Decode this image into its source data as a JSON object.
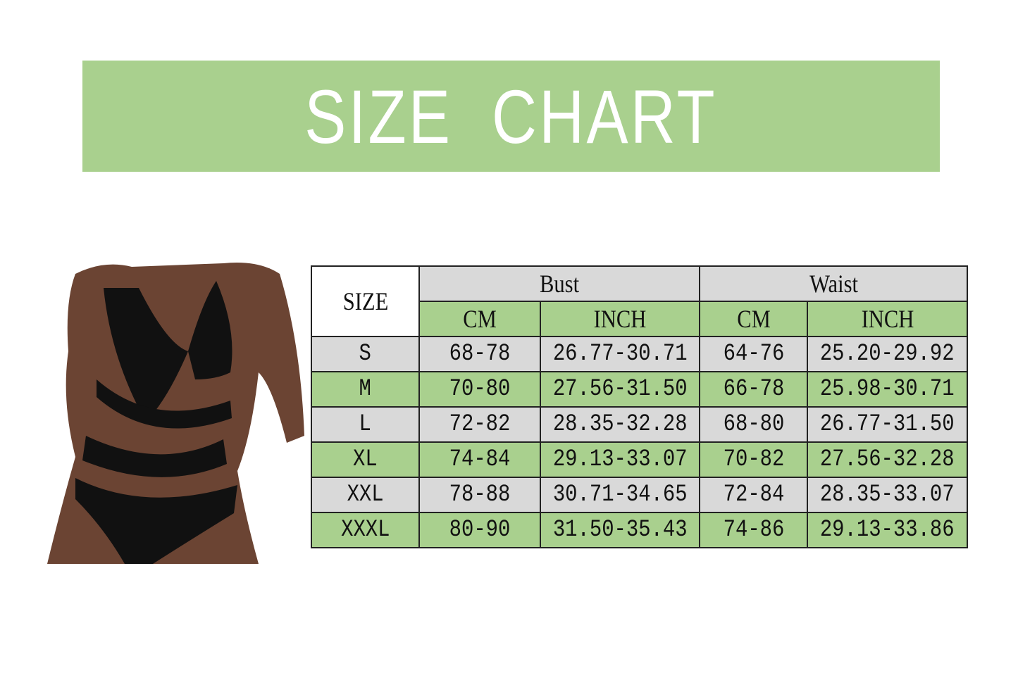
{
  "banner": {
    "title": "SIZE  CHART",
    "color": "#a9d08e"
  },
  "photo": {
    "subject": "model-wearing-black-lace-lingerie-set"
  },
  "table": {
    "size_header": "SIZE",
    "groups": [
      "Bust",
      "Waist"
    ],
    "units": [
      "CM",
      "INCH",
      "CM",
      "INCH"
    ],
    "colors": {
      "gray": "#d9d9d9",
      "green": "#a9d08e"
    },
    "rows": [
      {
        "size": "S",
        "bust_cm": "68-78",
        "bust_inch": "26.77-30.71",
        "waist_cm": "64-76",
        "waist_inch": "25.20-29.92"
      },
      {
        "size": "M",
        "bust_cm": "70-80",
        "bust_inch": "27.56-31.50",
        "waist_cm": "66-78",
        "waist_inch": "25.98-30.71"
      },
      {
        "size": "L",
        "bust_cm": "72-82",
        "bust_inch": "28.35-32.28",
        "waist_cm": "68-80",
        "waist_inch": "26.77-31.50"
      },
      {
        "size": "XL",
        "bust_cm": "74-84",
        "bust_inch": "29.13-33.07",
        "waist_cm": "70-82",
        "waist_inch": "27.56-32.28"
      },
      {
        "size": "XXL",
        "bust_cm": "78-88",
        "bust_inch": "30.71-34.65",
        "waist_cm": "72-84",
        "waist_inch": "28.35-33.07"
      },
      {
        "size": "XXXL",
        "bust_cm": "80-90",
        "bust_inch": "31.50-35.43",
        "waist_cm": "74-86",
        "waist_inch": "29.13-33.86"
      }
    ]
  }
}
